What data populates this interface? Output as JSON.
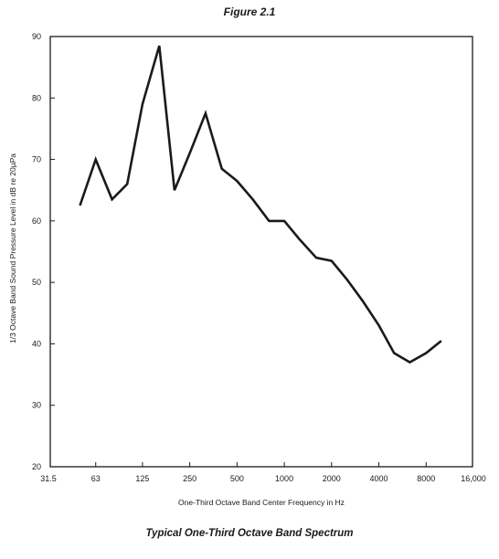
{
  "figure_label": "Figure 2.1",
  "caption": "Typical One-Third Octave Band Spectrum",
  "chart_data": {
    "type": "line",
    "title": "Figure 2.1",
    "subtitle": "Typical One-Third Octave Band Spectrum",
    "xlabel": "One-Third Octave Band Center Frequency in Hz",
    "ylabel": "1/3 Octave Band Sound Pressure Level in dB re 20µPa",
    "x_scale": "log2",
    "xlim": [
      31.5,
      16000
    ],
    "ylim": [
      20,
      90
    ],
    "x_ticks": [
      {
        "value": 31.5,
        "label": "31.5"
      },
      {
        "value": 63,
        "label": "63"
      },
      {
        "value": 125,
        "label": "125"
      },
      {
        "value": 250,
        "label": "250"
      },
      {
        "value": 500,
        "label": "500"
      },
      {
        "value": 1000,
        "label": "1000"
      },
      {
        "value": 2000,
        "label": "2000"
      },
      {
        "value": 4000,
        "label": "4000"
      },
      {
        "value": 8000,
        "label": "8000"
      },
      {
        "value": 16000,
        "label": "16,000"
      }
    ],
    "y_ticks": [
      20,
      30,
      40,
      50,
      60,
      70,
      80,
      90
    ],
    "grid": false,
    "legend": "none",
    "line_color": "#1a1a1a",
    "series": [
      {
        "x": [
          50,
          63,
          80,
          100,
          125,
          160,
          200,
          250,
          315,
          400,
          500,
          630,
          800,
          1000,
          1250,
          1600,
          2000,
          2500,
          3150,
          4000,
          5000,
          6300,
          8000,
          10000
        ],
        "y": [
          62.5,
          70,
          63.5,
          66,
          79,
          88.5,
          65,
          71,
          77.5,
          68.5,
          66.5,
          63.5,
          60,
          60,
          57,
          54,
          53.5,
          50.5,
          47,
          43,
          38.5,
          37,
          38.5,
          40.5
        ]
      }
    ]
  }
}
